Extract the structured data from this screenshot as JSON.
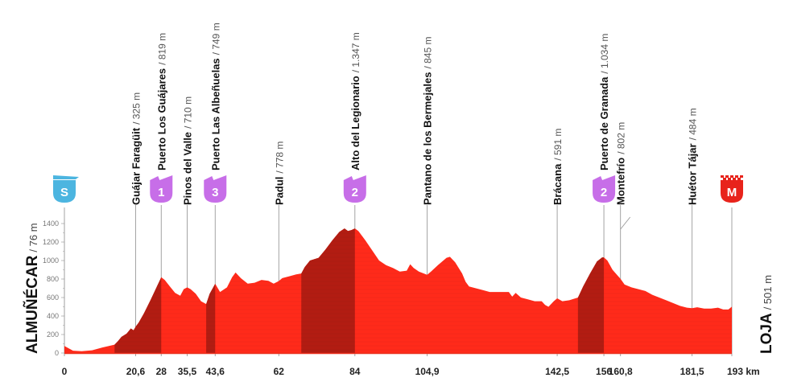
{
  "chart_data": {
    "type": "area",
    "title": "",
    "xlabel": "km",
    "ylabel": "m",
    "xlim": [
      0,
      193
    ],
    "ylim": [
      0,
      1400
    ],
    "yticks": [
      0,
      200,
      400,
      600,
      800,
      1000,
      1200,
      1400
    ],
    "grid": false,
    "fill_color": "#ff2a1a",
    "climb_color": "#b21c12",
    "start": {
      "name": "ALMUÑÉCAR",
      "alt": "76 m",
      "km": 0,
      "badge": "S",
      "badge_color": "#4cb5e0"
    },
    "finish": {
      "name": "LOJA",
      "alt": "501 m",
      "km": 193,
      "badge": "M",
      "badge_color": "#e8231b"
    },
    "km_labels": [
      {
        "km": 0,
        "label": "0"
      },
      {
        "km": 20.6,
        "label": "20,6"
      },
      {
        "km": 28,
        "label": "28"
      },
      {
        "km": 35.5,
        "label": "35,5"
      },
      {
        "km": 43.6,
        "label": "43,6"
      },
      {
        "km": 62,
        "label": "62"
      },
      {
        "km": 84,
        "label": "84"
      },
      {
        "km": 104.9,
        "label": "104,9"
      },
      {
        "km": 142.5,
        "label": "142,5"
      },
      {
        "km": 156,
        "label": "156"
      },
      {
        "km": 160.8,
        "label": "160,8"
      },
      {
        "km": 181.5,
        "label": "181,5"
      },
      {
        "km": 193,
        "label": "193 km"
      }
    ],
    "waypoints": [
      {
        "name": "Guájar Faragüit",
        "alt": "325 m",
        "km": 20.6,
        "category": null
      },
      {
        "name": "Puerto Los Guájares",
        "alt": "819 m",
        "km": 28,
        "category": "1"
      },
      {
        "name": "Pinos del Valle",
        "alt": "710 m",
        "km": 35.5,
        "category": null
      },
      {
        "name": "Puerto Las Albeñuelas",
        "alt": "749 m",
        "km": 43.6,
        "category": "3"
      },
      {
        "name": "Padul",
        "alt": "778 m",
        "km": 62,
        "category": null
      },
      {
        "name": "Alto del Legionario",
        "alt": "1.347 m",
        "km": 84,
        "category": "2"
      },
      {
        "name": "Pantano de los Bermejales",
        "alt": "845 m",
        "km": 104.9,
        "category": null
      },
      {
        "name": "Brácana",
        "alt": "591 m",
        "km": 142.5,
        "category": null
      },
      {
        "name": "Puerto de Granada",
        "alt": "1.034 m",
        "km": 156,
        "category": "2"
      },
      {
        "name": "Montefrío",
        "alt": "802 m",
        "km": 160.8,
        "category": null
      },
      {
        "name": "Huétor Tájar",
        "alt": "484 m",
        "km": 181.5,
        "category": null
      }
    ],
    "climb_badge_color": "#c76ee8",
    "climbs": [
      {
        "from_km": 14.5,
        "to_km": 28,
        "category": "1"
      },
      {
        "from_km": 41,
        "to_km": 43.6,
        "category": "3"
      },
      {
        "from_km": 68.5,
        "to_km": 84,
        "category": "2"
      },
      {
        "from_km": 148.5,
        "to_km": 156,
        "category": "2"
      }
    ],
    "profile": [
      [
        0,
        76
      ],
      [
        0.8,
        60
      ],
      [
        2.5,
        25
      ],
      [
        5,
        20
      ],
      [
        8,
        30
      ],
      [
        11,
        60
      ],
      [
        14.5,
        90
      ],
      [
        15.5,
        130
      ],
      [
        16.5,
        175
      ],
      [
        18,
        210
      ],
      [
        19.2,
        265
      ],
      [
        20,
        245
      ],
      [
        20.6,
        285
      ],
      [
        21.5,
        330
      ],
      [
        23,
        430
      ],
      [
        25,
        580
      ],
      [
        27,
        740
      ],
      [
        28,
        819
      ],
      [
        29,
        790
      ],
      [
        30.5,
        720
      ],
      [
        32,
        650
      ],
      [
        33.5,
        620
      ],
      [
        34.5,
        690
      ],
      [
        35.5,
        710
      ],
      [
        36.5,
        690
      ],
      [
        38,
        640
      ],
      [
        39.5,
        560
      ],
      [
        41,
        530
      ],
      [
        42,
        640
      ],
      [
        43.6,
        749
      ],
      [
        45,
        660
      ],
      [
        47,
        710
      ],
      [
        48.5,
        820
      ],
      [
        49.5,
        870
      ],
      [
        51,
        810
      ],
      [
        53,
        750
      ],
      [
        55,
        760
      ],
      [
        57,
        790
      ],
      [
        59,
        780
      ],
      [
        60.5,
        750
      ],
      [
        62,
        778
      ],
      [
        63,
        810
      ],
      [
        65,
        830
      ],
      [
        67,
        850
      ],
      [
        68.5,
        860
      ],
      [
        69.5,
        930
      ],
      [
        71,
        1000
      ],
      [
        73.5,
        1030
      ],
      [
        75.5,
        1120
      ],
      [
        77.5,
        1220
      ],
      [
        79.5,
        1310
      ],
      [
        81,
        1347
      ],
      [
        82,
        1320
      ],
      [
        83,
        1330
      ],
      [
        84,
        1347
      ],
      [
        85,
        1320
      ],
      [
        87,
        1220
      ],
      [
        89,
        1110
      ],
      [
        91,
        1000
      ],
      [
        93,
        950
      ],
      [
        95,
        920
      ],
      [
        97,
        880
      ],
      [
        99,
        890
      ],
      [
        100,
        960
      ],
      [
        101,
        920
      ],
      [
        102.5,
        880
      ],
      [
        104.9,
        845
      ],
      [
        106,
        880
      ],
      [
        108,
        950
      ],
      [
        110.5,
        1030
      ],
      [
        111.5,
        1040
      ],
      [
        113,
        980
      ],
      [
        115,
        860
      ],
      [
        116,
        770
      ],
      [
        117,
        720
      ],
      [
        119,
        700
      ],
      [
        121,
        680
      ],
      [
        123,
        660
      ],
      [
        125,
        660
      ],
      [
        127,
        660
      ],
      [
        128.5,
        660
      ],
      [
        129.5,
        610
      ],
      [
        130.5,
        650
      ],
      [
        132,
        600
      ],
      [
        134,
        580
      ],
      [
        136,
        560
      ],
      [
        138,
        560
      ],
      [
        139,
        520
      ],
      [
        140,
        500
      ],
      [
        141.5,
        560
      ],
      [
        142.5,
        591
      ],
      [
        144,
        560
      ],
      [
        146,
        570
      ],
      [
        148.5,
        600
      ],
      [
        150,
        720
      ],
      [
        152,
        860
      ],
      [
        154,
        990
      ],
      [
        155.5,
        1034
      ],
      [
        156,
        1034
      ],
      [
        157,
        1000
      ],
      [
        158.5,
        900
      ],
      [
        160.8,
        802
      ],
      [
        162,
        740
      ],
      [
        164,
        710
      ],
      [
        166,
        690
      ],
      [
        168,
        670
      ],
      [
        170,
        630
      ],
      [
        172,
        600
      ],
      [
        174,
        570
      ],
      [
        176,
        540
      ],
      [
        178,
        510
      ],
      [
        180,
        490
      ],
      [
        181.5,
        484
      ],
      [
        183,
        495
      ],
      [
        185,
        480
      ],
      [
        187,
        480
      ],
      [
        189,
        490
      ],
      [
        190.5,
        470
      ],
      [
        192,
        470
      ],
      [
        193,
        501
      ]
    ]
  }
}
